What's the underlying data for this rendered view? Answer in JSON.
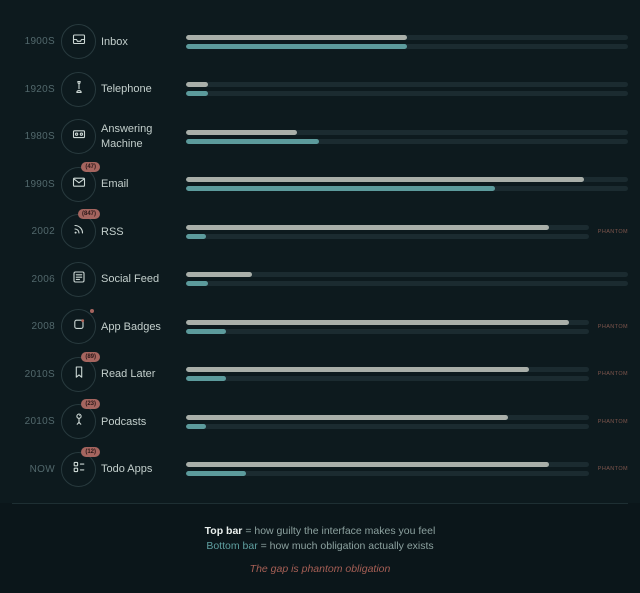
{
  "chart_data": {
    "type": "bar",
    "orientation": "horizontal",
    "value_unit": "percent of track length (estimated 0-100)",
    "series_names": [
      "guilt (top gray bar)",
      "obligation (bottom teal bar)"
    ],
    "phantom_label": "PHANTOM",
    "rows": [
      {
        "era": "1900S",
        "label": "Inbox",
        "icon": "inbox-tray-icon",
        "badge": null,
        "notification_dot": false,
        "phantom": false,
        "guilt": 50,
        "obligation": 50
      },
      {
        "era": "1920S",
        "label": "Telephone",
        "icon": "telephone-icon",
        "badge": null,
        "notification_dot": false,
        "phantom": false,
        "guilt": 5,
        "obligation": 5
      },
      {
        "era": "1980S",
        "label": "Answering Machine",
        "icon": "cassette-icon",
        "badge": null,
        "notification_dot": false,
        "phantom": false,
        "guilt": 25,
        "obligation": 30
      },
      {
        "era": "1990S",
        "label": "Email",
        "icon": "envelope-icon",
        "badge": "(47)",
        "notification_dot": false,
        "phantom": false,
        "guilt": 90,
        "obligation": 70
      },
      {
        "era": "2002",
        "label": "RSS",
        "icon": "rss-icon",
        "badge": "(847)",
        "notification_dot": false,
        "phantom": true,
        "guilt": 90,
        "obligation": 5
      },
      {
        "era": "2006",
        "label": "Social Feed",
        "icon": "feed-icon",
        "badge": null,
        "notification_dot": false,
        "phantom": false,
        "guilt": 15,
        "obligation": 5
      },
      {
        "era": "2008",
        "label": "App Badges",
        "icon": "app-badge-icon",
        "badge": null,
        "notification_dot": true,
        "phantom": true,
        "guilt": 95,
        "obligation": 10
      },
      {
        "era": "2010S",
        "label": "Read Later",
        "icon": "bookmark-icon",
        "badge": "(89)",
        "notification_dot": false,
        "phantom": true,
        "guilt": 85,
        "obligation": 10
      },
      {
        "era": "2010S",
        "label": "Podcasts",
        "icon": "microphone-icon",
        "badge": "(23)",
        "notification_dot": false,
        "phantom": true,
        "guilt": 80,
        "obligation": 5
      },
      {
        "era": "NOW",
        "label": "Todo Apps",
        "icon": "checklist-icon",
        "badge": "(12)",
        "notification_dot": false,
        "phantom": true,
        "guilt": 90,
        "obligation": 15
      }
    ]
  },
  "legend": {
    "top_term": "Top bar",
    "top_def": " = how guilty the interface makes you feel",
    "bottom_term": "Bottom bar",
    "bottom_def": " = how much obligation actually exists",
    "tagline": "The gap is phantom obligation"
  },
  "colors": {
    "background": "#0d1a1e",
    "footer_background": "#0b161a",
    "track": "#1b2b30",
    "guilt_bar": "#a9afa9",
    "obligation_bar": "#5c9b9c",
    "badge": "#a5655f",
    "phantom_text": "#7d554c",
    "era_text": "#52686c",
    "label_text": "#c3cfcc",
    "tagline_text": "#a65f55"
  }
}
